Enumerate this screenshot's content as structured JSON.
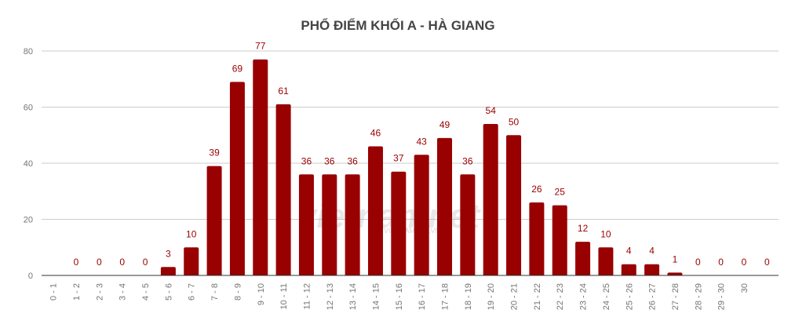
{
  "chart_data": {
    "type": "bar",
    "title": "PHỔ ĐIỂM KHỐI A - HÀ GIANG",
    "xlabel": "",
    "ylabel": "",
    "ylim": [
      0,
      80
    ],
    "yticks": [
      0,
      20,
      40,
      60,
      80
    ],
    "grid": true,
    "legend": "none",
    "bar_color": "#990000",
    "categories": [
      "0 - 1",
      "1 - 2",
      "2 - 3",
      "3 - 4",
      "4 - 5",
      "5 - 6",
      "6 - 7",
      "7 - 8",
      "8 - 9",
      "9 - 10",
      "10 - 11",
      "11 - 12",
      "12 - 13",
      "13 - 14",
      "14 - 15",
      "15 - 16",
      "16 - 17",
      "17 - 18",
      "18 - 19",
      "19 - 20",
      "20 - 21",
      "21 - 22",
      "22 - 23",
      "23 - 24",
      "24 - 25",
      "25 - 26",
      "26 - 27",
      "27 - 28",
      "28 - 29",
      "29 - 30",
      "30",
      ""
    ],
    "values": [
      null,
      0,
      0,
      0,
      0,
      3,
      10,
      39,
      69,
      77,
      61,
      36,
      36,
      36,
      46,
      37,
      43,
      49,
      36,
      54,
      50,
      26,
      25,
      12,
      10,
      4,
      4,
      1,
      0,
      0,
      0,
      0
    ],
    "watermark": "vietnamnet VIETNAMNET.VN"
  }
}
